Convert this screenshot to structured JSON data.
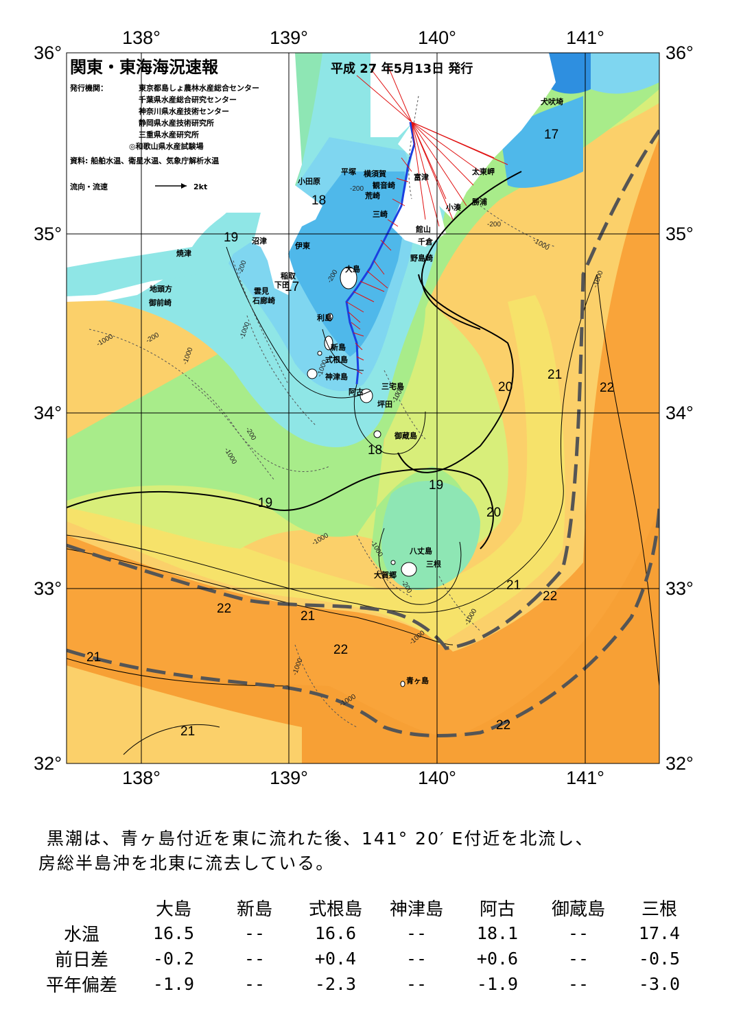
{
  "header": {
    "title": "関東・東海海況速報",
    "issue_date": "平成 27 年5月13日 発行",
    "issuer_label": "発行機関：",
    "issuers": [
      "東京都島しょ農林水産総合センター",
      "千葉県水産総合研究センター",
      "神奈川県水産技術センター",
      "静岡県水産技術研究所",
      "三重県水産研究所",
      "◎和歌山県水産試験場"
    ],
    "sources": "資料: 船舶水温、衛星水温、気象庁解析水温",
    "flow_legend": "流向・流速",
    "flow_scale": "2kt"
  },
  "axes": {
    "lon_top": [
      "138°",
      "139°",
      "140°",
      "141°"
    ],
    "lon_bottom": [
      "138°",
      "139°",
      "140°",
      "141°"
    ],
    "lat_left": [
      "36°",
      "35°",
      "34°",
      "33°",
      "32°"
    ],
    "lat_right": [
      "36°",
      "35°",
      "34°",
      "33°",
      "32°"
    ]
  },
  "places": [
    "犬吠埼",
    "平塚",
    "横須賀",
    "小田原",
    "観音崎",
    "富津",
    "太東岬",
    "荒崎",
    "勝浦",
    "小湊",
    "三崎",
    "館山",
    "沼津",
    "千倉",
    "伊東",
    "野島崎",
    "焼津",
    "稲取",
    "下田",
    "地頭方",
    "雲見",
    "御前崎",
    "石廊崎",
    "大島",
    "利島",
    "新島",
    "式根島",
    "神津島",
    "三宅島",
    "阿古",
    "坪田",
    "御蔵島",
    "八丈島",
    "三根",
    "大賀郷",
    "青ヶ島"
  ],
  "isotherms": [
    "17",
    "18",
    "17",
    "19",
    "20",
    "21",
    "22",
    "18",
    "19",
    "19",
    "20",
    "21",
    "22",
    "22",
    "21",
    "22",
    "21",
    "22",
    "21"
  ],
  "depth_labels": [
    "-200",
    "-200",
    "-1000",
    "-200",
    "-1000",
    "-200",
    "-1000",
    "-1000",
    "-1000",
    "-200",
    "-1000",
    "-200",
    "-1000",
    "-1000",
    "-1000",
    "-200",
    "-1000",
    "-1000",
    "-1000",
    "-1000",
    "-1000"
  ],
  "summary": [
    "黒潮は、青ヶ島付近を東に流れた後、141° 20′ E付近を北流し、",
    "房総半島沖を北東に流去している。"
  ],
  "table": {
    "columns": [
      "大島",
      "新島",
      "式根島",
      "神津島",
      "阿古",
      "御蔵島",
      "三根"
    ],
    "rows": [
      {
        "label": "水温",
        "values": [
          "16.5",
          "--",
          "16.6",
          "--",
          "18.1",
          "--",
          "17.4"
        ]
      },
      {
        "label": "前日差",
        "values": [
          "-0.2",
          "--",
          "+0.4",
          "--",
          "+0.6",
          "--",
          "-0.5"
        ]
      },
      {
        "label": "平年偏差",
        "values": [
          "-1.9",
          "--",
          "-2.3",
          "--",
          "-1.9",
          "--",
          "-3.0"
        ]
      }
    ]
  },
  "colors": {
    "t17": "#4fb8ea",
    "t18": "#7fd6f0",
    "t18b": "#8fe6e6",
    "t19": "#8ee6b4",
    "t19b": "#a8ec8a",
    "t20": "#d8ee7a",
    "t20b": "#f6e26a",
    "t21": "#fbd06a",
    "t22": "#f9a43a",
    "kuroshio": "#555555",
    "ship_track": "#1b3fe0",
    "flow_vector": "#e01010"
  }
}
